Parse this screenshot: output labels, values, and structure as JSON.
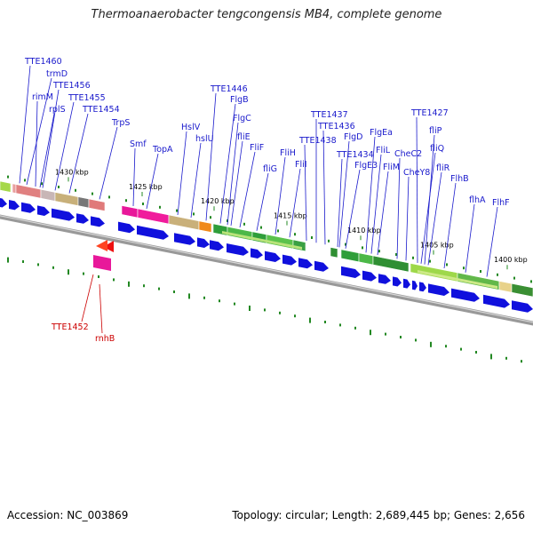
{
  "title": "Thermoanaerobacter tengcongensis MB4, complete genome",
  "footer": {
    "accession_label": "Accession:",
    "accession": "NC_003869",
    "topology_label": "Topology:",
    "topology": "circular",
    "length_label": "Length:",
    "length": "2,689,445 bp",
    "genes_label": "Genes:",
    "genes": "2,656"
  },
  "colors": {
    "forward_gene": "#1010dd",
    "reverse_gene": "#ee1111",
    "forward_label": "#1a1acc",
    "reverse_label": "#cc0000",
    "backbone": "#777777",
    "tick_mark": "#228822"
  },
  "scale": {
    "unit": "kbp",
    "ticks": [
      "1430 kbp",
      "1425 kbp",
      "1420 kbp",
      "1415 kbp",
      "1410 kbp",
      "1405 kbp",
      "1400 kbp"
    ]
  },
  "forward_labels": [
    "TTE1460",
    "trmD",
    "rimM",
    "TTE1456",
    "rplS",
    "TTE1455",
    "TTE1454",
    "TrpS",
    "Smf",
    "TopA",
    "HslV",
    "hslU",
    "TTE1446",
    "FlgB",
    "FlgC",
    "fliE",
    "FliF",
    "fliG",
    "FliH",
    "FliI",
    "TTE1438",
    "TTE1437",
    "TTE1436",
    "FlgD",
    "TTE1434",
    "FlgE3",
    "FlgEa",
    "FliL",
    "FliM",
    "CheC2",
    "CheY8",
    "TTE1427",
    "fliP",
    "fliQ",
    "fliR",
    "FlhB",
    "flhA",
    "FlhF"
  ],
  "reverse_labels": [
    "TTE1452",
    "rnhB"
  ]
}
